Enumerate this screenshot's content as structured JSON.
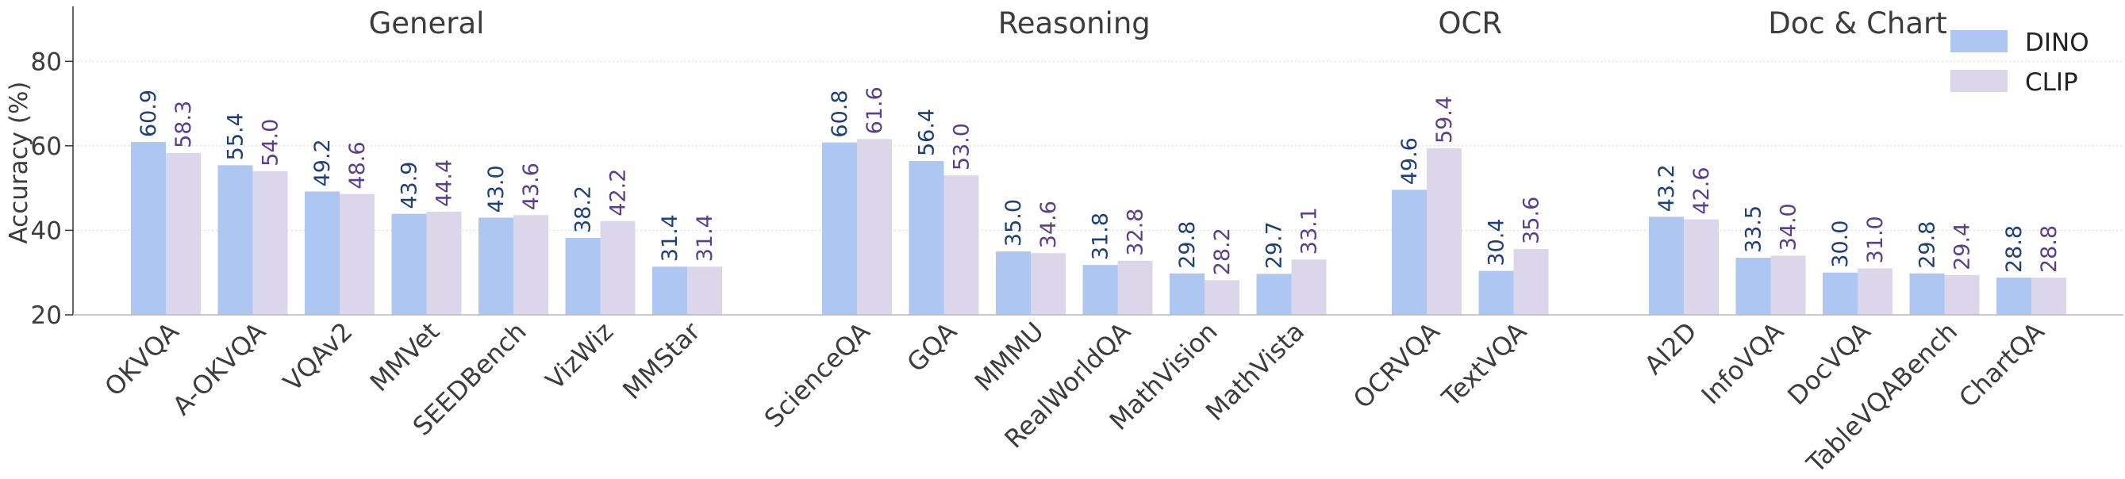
{
  "chart_data": {
    "type": "bar",
    "ylabel": "Accuracy (%)",
    "xlabel": "",
    "ylim": [
      20,
      93
    ],
    "yticks": [
      20,
      40,
      60,
      80
    ],
    "grid": "horizontal dotted",
    "legend_position": "top-right",
    "colors": {
      "DINO": "#aec7f2",
      "CLIP": "#dcd6ea",
      "DINO_label": "#1f3f78",
      "CLIP_label": "#5a3f8f"
    },
    "groups": [
      {
        "name": "General",
        "categories": [
          "OKVQA",
          "A-OKVQA",
          "VQAv2",
          "MMVet",
          "SEEDBench",
          "VizWiz",
          "MMStar"
        ]
      },
      {
        "name": "Reasoning",
        "categories": [
          "ScienceQA",
          "GQA",
          "MMMU",
          "RealWorldQA",
          "MathVision",
          "MathVista"
        ]
      },
      {
        "name": "OCR",
        "categories": [
          "OCRVQA",
          "TextVQA"
        ]
      },
      {
        "name": "Doc & Chart",
        "categories": [
          "AI2D",
          "InfoVQA",
          "DocVQA",
          "TableVQABench",
          "ChartQA"
        ]
      }
    ],
    "series": [
      {
        "name": "DINO",
        "values": [
          60.9,
          55.4,
          49.2,
          43.9,
          43.0,
          38.2,
          31.4,
          60.8,
          56.4,
          35.0,
          31.8,
          29.8,
          29.7,
          49.6,
          30.4,
          43.2,
          33.5,
          30.0,
          29.8,
          28.8
        ]
      },
      {
        "name": "CLIP",
        "values": [
          58.3,
          54.0,
          48.6,
          44.4,
          43.6,
          42.2,
          31.4,
          61.6,
          53.0,
          34.6,
          32.8,
          28.2,
          33.1,
          59.4,
          35.6,
          42.6,
          34.0,
          31.0,
          29.4,
          28.8
        ]
      }
    ],
    "value_labels": {
      "DINO": [
        "60.9",
        "55.4",
        "49.2",
        "43.9",
        "43.0",
        "38.2",
        "31.4",
        "60.8",
        "56.4",
        "35.0",
        "31.8",
        "29.8",
        "29.7",
        "49.6",
        "30.4",
        "43.2",
        "33.5",
        "30.0",
        "29.8",
        "28.8"
      ],
      "CLIP": [
        "58.3",
        "54.0",
        "48.6",
        "44.4",
        "43.6",
        "42.2",
        "31.4",
        "61.6",
        "53.0",
        "34.6",
        "32.8",
        "28.2",
        "33.1",
        "59.4",
        "35.6",
        "42.6",
        "34.0",
        "31.0",
        "29.4",
        "28.8"
      ]
    }
  }
}
